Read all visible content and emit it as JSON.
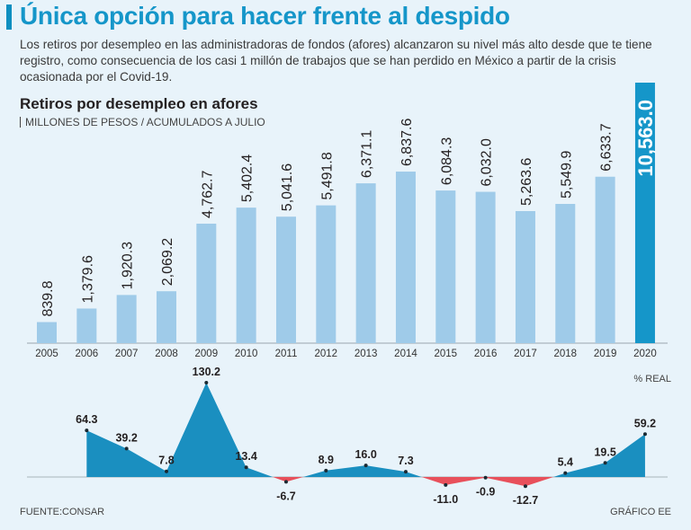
{
  "headline": "Única opción para hacer frente al despido",
  "dek": "Los retiros por desempleo en las administradoras de fondos (afores) alcanzaron su nivel más alto desde que te tiene registro, como consecuencia de los casi 1 millón de trabajos que se han perdido en México a partir de la crisis ocasionada por el Covid-19.",
  "chart_title": "Retiros por desempleo en afores",
  "chart_subtitle": "MILLONES DE PESOS / ACUMULADOS A JULIO",
  "unit_note": "% REAL",
  "footer": {
    "source": "FUENTE:CONSAR",
    "credit": "GRÁFICO EE"
  },
  "colors": {
    "bar": "#9fcbe9",
    "highlight": "#1596c9",
    "area_positive": "#1a8fc0",
    "area_negative": "#e8505b",
    "headline": "#1596c9"
  },
  "chart_data": [
    {
      "type": "bar",
      "categories": [
        "2005",
        "2006",
        "2007",
        "2008",
        "2009",
        "2010",
        "2011",
        "2012",
        "2013",
        "2014",
        "2015",
        "2016",
        "2017",
        "2018",
        "2019",
        "2020"
      ],
      "values": [
        839.8,
        1379.6,
        1920.3,
        2069.2,
        4762.7,
        5402.4,
        5041.6,
        5491.8,
        6371.1,
        6837.6,
        6084.3,
        6032.0,
        5263.6,
        5549.9,
        6633.7,
        10563.0
      ],
      "labels": [
        "839.8",
        "1,379.6",
        "1,920.3",
        "2,069.2",
        "4,762.7",
        "5,402.4",
        "5,041.6",
        "5,491.8",
        "6,371.1",
        "6,837.6",
        "6,084.3",
        "6,032.0",
        "5,263.6",
        "5,549.9",
        "6,633.7",
        "10,563.0"
      ],
      "highlight_category": "2020",
      "ylabel": "MILLONES DE PESOS / ACUMULADOS A JULIO",
      "ylim": [
        0,
        10563
      ],
      "grid": false
    },
    {
      "type": "area",
      "categories": [
        "2006",
        "2007",
        "2008",
        "2009",
        "2010",
        "2011",
        "2012",
        "2013",
        "2014",
        "2015",
        "2016",
        "2017",
        "2018",
        "2019",
        "2020"
      ],
      "values": [
        64.3,
        39.2,
        7.8,
        130.2,
        13.4,
        -6.7,
        8.9,
        16.0,
        7.3,
        -11.0,
        -0.9,
        -12.7,
        5.4,
        19.5,
        59.2
      ],
      "labels": [
        "64.3",
        "39.2",
        "7.8",
        "130.2",
        "13.4",
        "-6.7",
        "8.9",
        "16.0",
        "7.3",
        "-11.0",
        "-0.9",
        "-12.7",
        "5.4",
        "19.5",
        "59.2"
      ],
      "ylabel": "% REAL",
      "ylim": [
        -12.7,
        130.2
      ],
      "grid": false
    }
  ]
}
